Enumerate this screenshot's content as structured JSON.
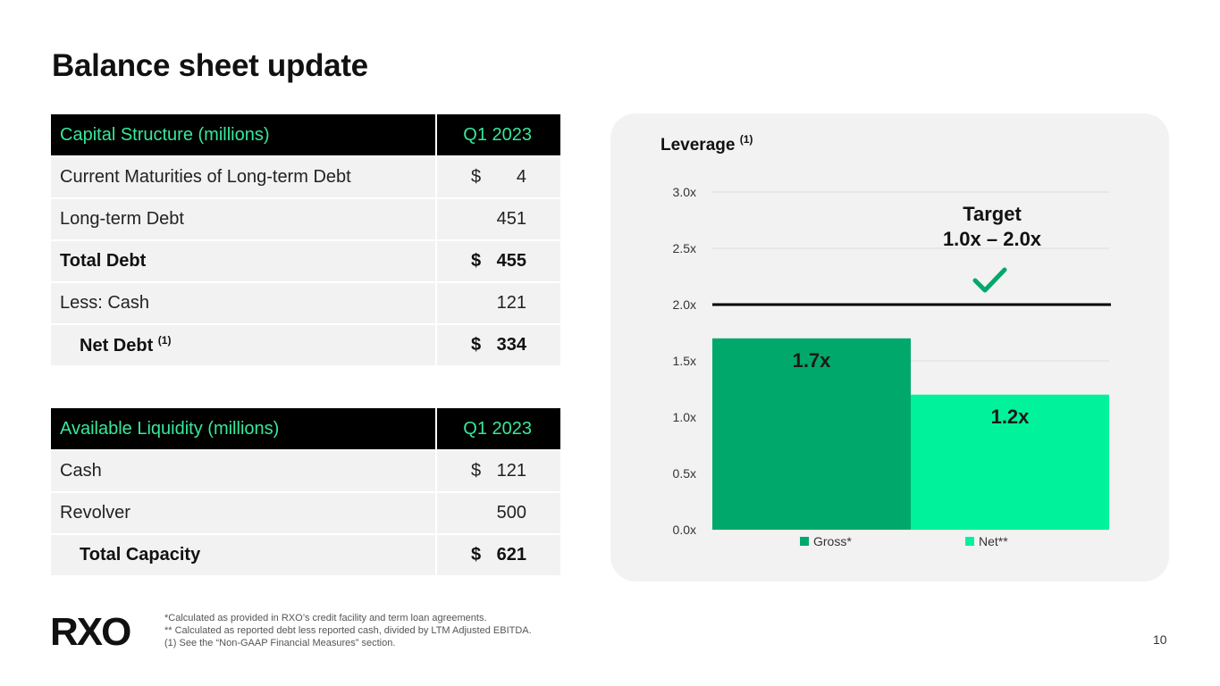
{
  "slide": {
    "title": "Balance sheet update",
    "page_number": "10"
  },
  "capital_table": {
    "header": {
      "label": "Capital Structure (millions)",
      "period": "Q1 2023"
    },
    "rows": [
      {
        "label": "Current Maturities of Long-term Debt",
        "dollar": "$",
        "value": "4"
      },
      {
        "label": "Long-term Debt",
        "dollar": "",
        "value": "451"
      },
      {
        "label": "Total Debt",
        "dollar": "$",
        "value": "455"
      },
      {
        "label": "Less: Cash",
        "dollar": "",
        "value": "121"
      },
      {
        "label": "Net Debt",
        "footnote": "(1)",
        "dollar": "$",
        "value": "334"
      }
    ]
  },
  "liquidity_table": {
    "header": {
      "label": "Available Liquidity (millions)",
      "period": "Q1 2023"
    },
    "rows": [
      {
        "label": "Cash",
        "dollar": "$",
        "value": "121"
      },
      {
        "label": "Revolver",
        "dollar": "",
        "value": "500"
      },
      {
        "label": "Total Capacity",
        "dollar": "$",
        "value": "621"
      }
    ]
  },
  "chart_data": {
    "type": "bar",
    "title": "Leverage",
    "title_footnote": "(1)",
    "categories": [
      "Gross*",
      "Net**"
    ],
    "values": [
      1.7,
      1.2
    ],
    "data_labels": [
      "1.7x",
      "1.2x"
    ],
    "colors": [
      "#00a86b",
      "#00f29b"
    ],
    "ylim": [
      0,
      3.0
    ],
    "yticks": [
      "0.0x",
      "0.5x",
      "1.0x",
      "1.5x",
      "2.0x",
      "2.5x",
      "3.0x"
    ],
    "target_line_value": 2.0,
    "target_label_line1": "Target",
    "target_label_line2": "1.0x – 2.0x",
    "legend_position": "bottom",
    "grid": true
  },
  "footer": {
    "logo_text": "RXO",
    "footnote_1": "*Calculated as provided in RXO’s credit facility and term loan agreements.",
    "footnote_2": "** Calculated as reported debt less reported cash, divided by LTM Adjusted EBITDA.",
    "footnote_3": "(1) See the “Non-GAAP Financial Measures” section."
  },
  "colors": {
    "accent_green": "#37e89a",
    "gross_bar": "#00a86b",
    "net_bar": "#00f29b",
    "check_green": "#00a86b"
  }
}
